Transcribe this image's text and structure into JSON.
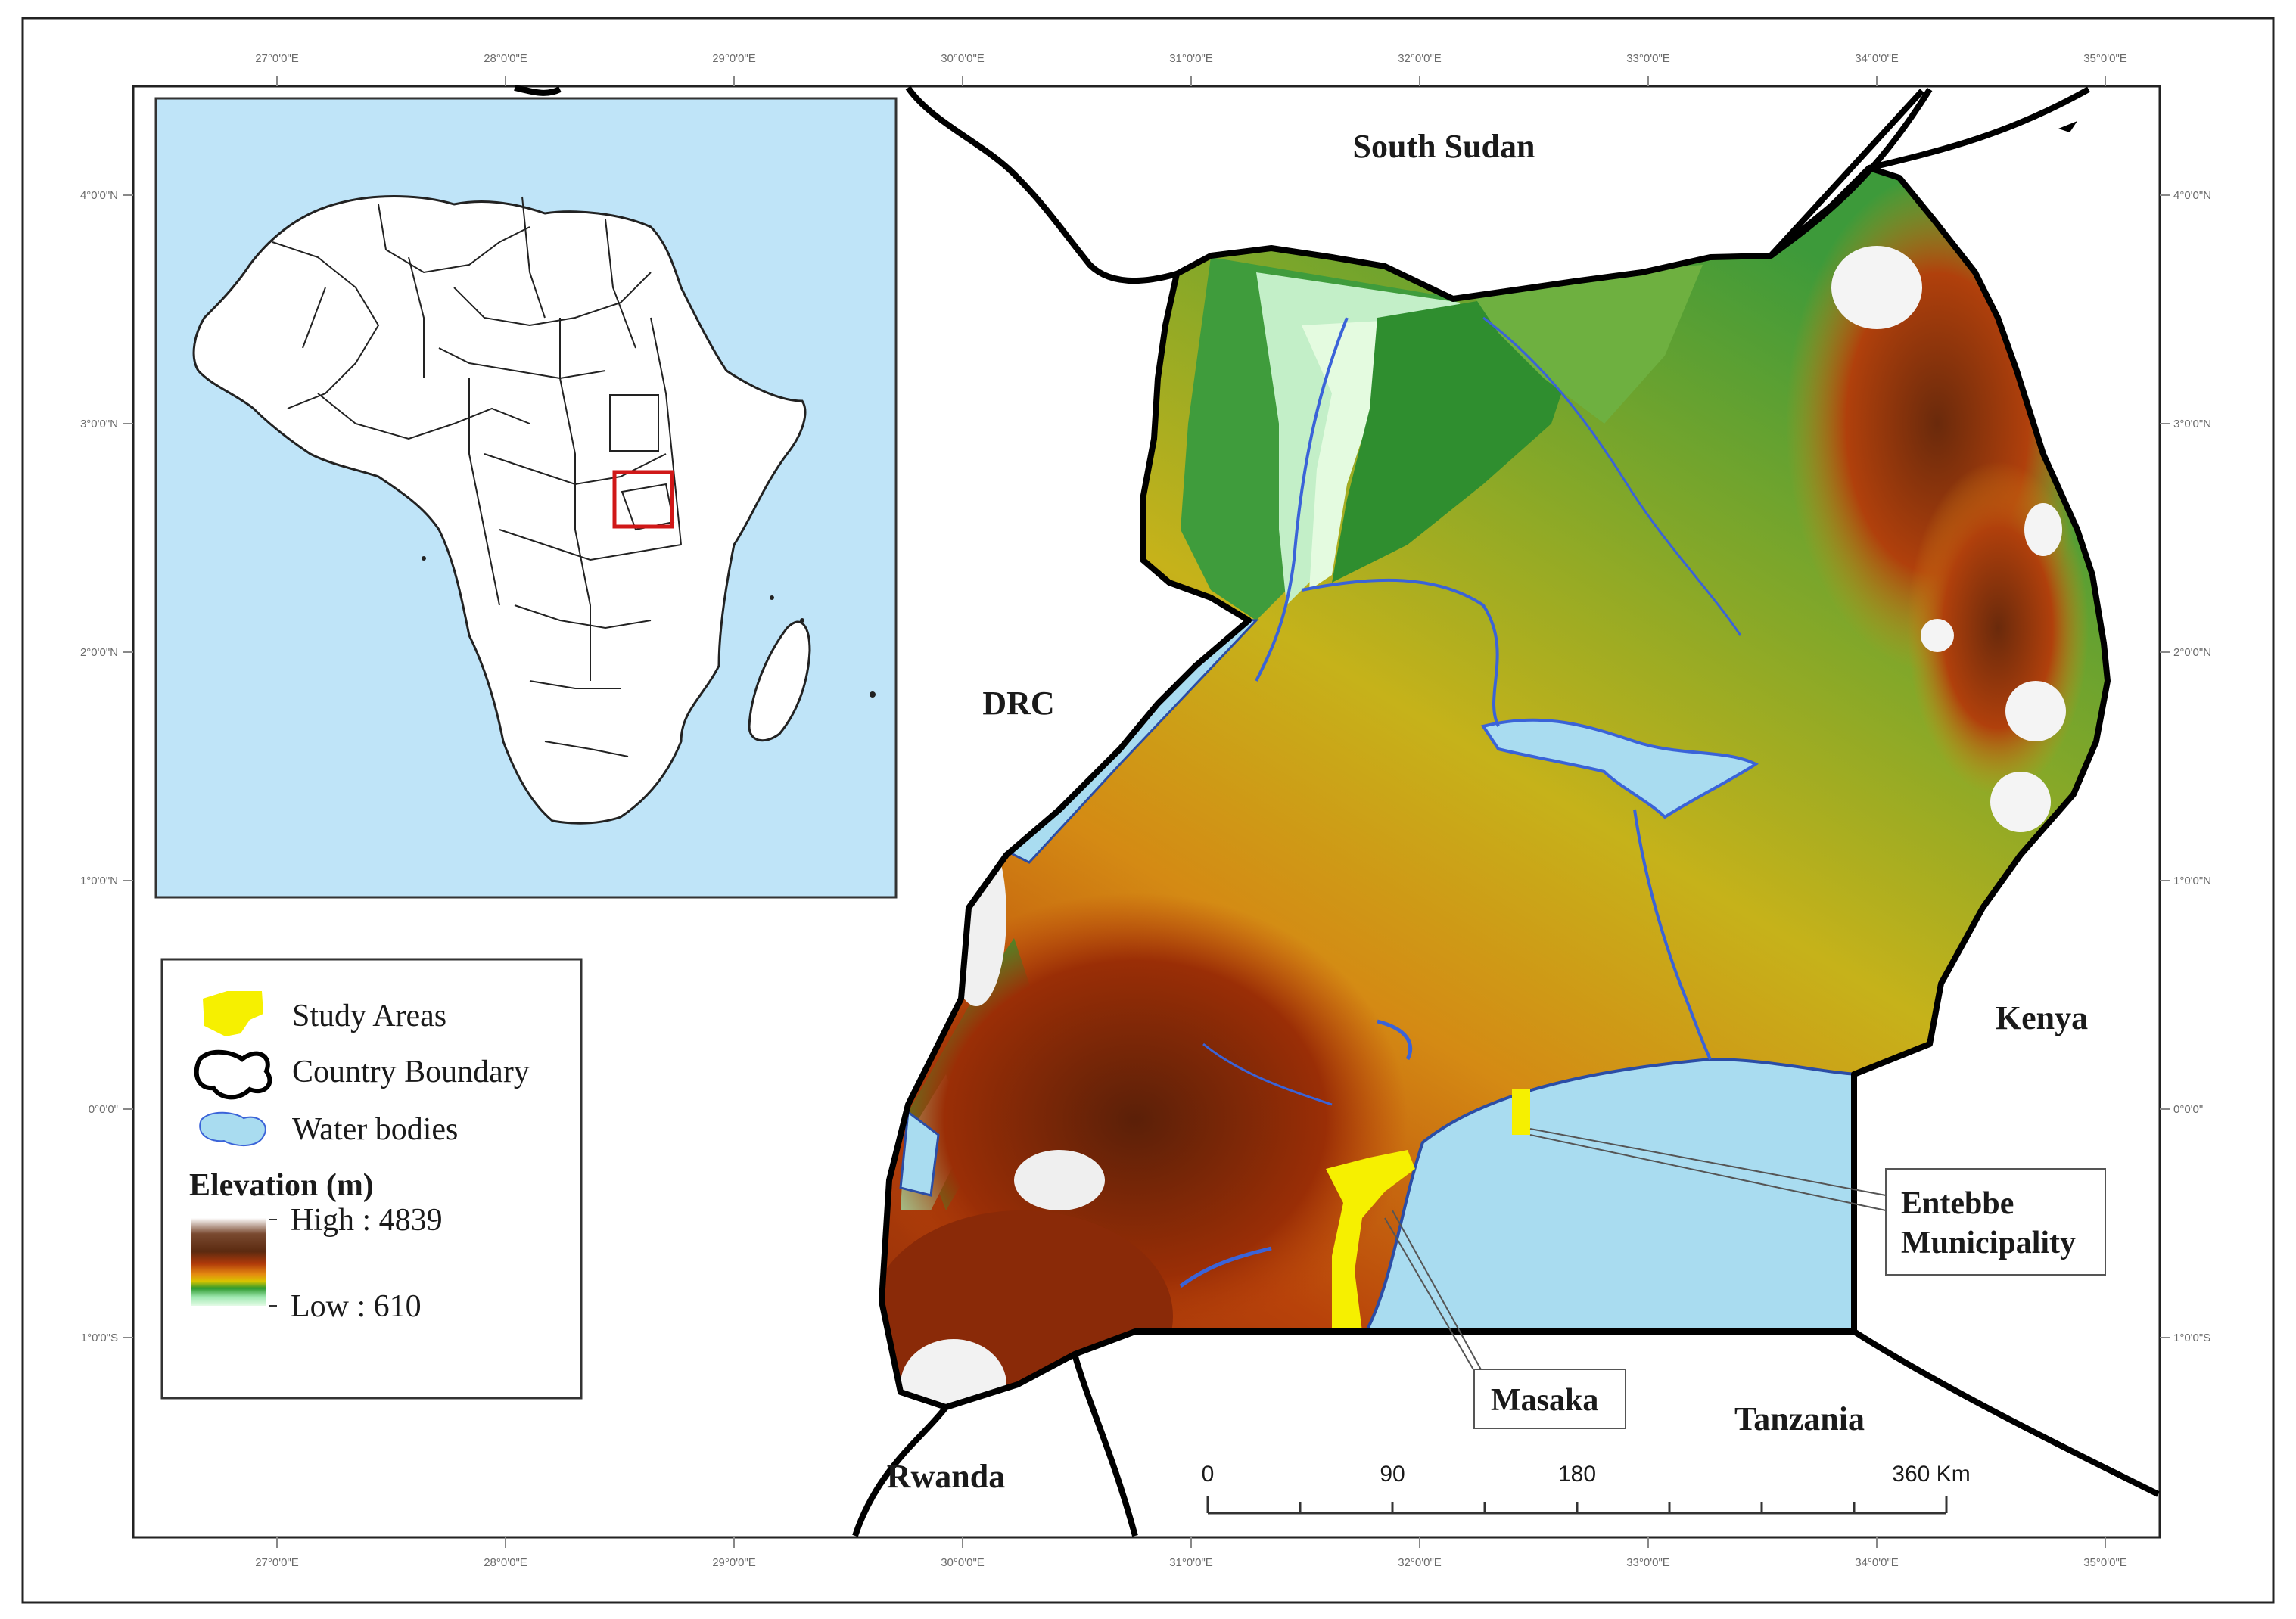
{
  "frame": {
    "longitude_ticks": [
      "27°0'0\"E",
      "28°0'0\"E",
      "29°0'0\"E",
      "30°0'0\"E",
      "31°0'0\"E",
      "32°0'0\"E",
      "33°0'0\"E",
      "34°0'0\"E",
      "35°0'0\"E"
    ],
    "latitude_ticks": [
      "4°0'0\"N",
      "3°0'0\"N",
      "2°0'0\"N",
      "1°0'0\"N",
      "0°0'0\"",
      "1°0'0\"S"
    ]
  },
  "labels": {
    "south_sudan": "South Sudan",
    "drc": "DRC",
    "kenya": "Kenya",
    "tanzania": "Tanzania",
    "rwanda": "Rwanda"
  },
  "callouts": {
    "entebbe_line1": "Entebbe",
    "entebbe_line2": "Municipality",
    "masaka": "Masaka"
  },
  "legend": {
    "study_areas": "Study Areas",
    "country_boundary": "Country Boundary",
    "water_bodies": "Water bodies",
    "elevation_title": "Elevation (m)",
    "high": "High : 4839",
    "low": "Low : 610"
  },
  "scale_bar": {
    "labels": [
      "0",
      "90",
      "180",
      "360 Km"
    ]
  },
  "colors": {
    "water": "#a9dcf0",
    "inset_ocean": "#bfe4f8",
    "study_area": "#f6f000",
    "elev_high": "#ffffff",
    "elev_brown": "#5b2a10",
    "elev_red": "#b03a0a",
    "elev_orange": "#e58a10",
    "elev_yellow": "#d9b400",
    "elev_green": "#2e9a2e",
    "elev_light": "#c8f4cf",
    "inset_highlight": "#d01818"
  }
}
